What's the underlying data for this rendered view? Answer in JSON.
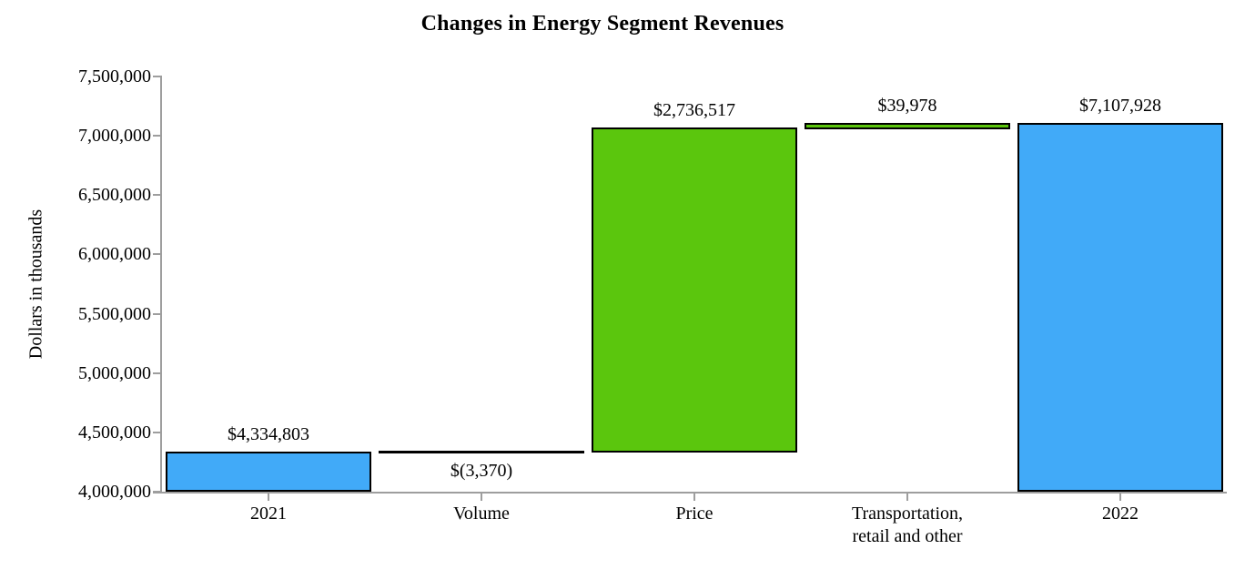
{
  "chart_data": {
    "type": "bar",
    "subtype": "waterfall",
    "title": "Changes in Energy Segment Revenues",
    "ylabel": "Dollars in thousands",
    "xlabel": "",
    "ylim": [
      4000000,
      7500000
    ],
    "ytick_step": 500000,
    "ytick_labels": [
      "4,000,000",
      "4,500,000",
      "5,000,000",
      "5,500,000",
      "6,000,000",
      "6,500,000",
      "7,000,000",
      "7,500,000"
    ],
    "grid": false,
    "legend": false,
    "categories": [
      "2021",
      "Volume",
      "Price",
      "Transportation,\nretail and other",
      "2022"
    ],
    "values": [
      4334803,
      -3370,
      2736517,
      39978,
      7107928
    ],
    "bars": [
      {
        "label": "$4,334,803",
        "value": 4334803,
        "start": 4000000,
        "end": 4334803,
        "color_role": "total",
        "label_pos": "above"
      },
      {
        "label": "$(3,370)",
        "value": -3370,
        "start": 4334803,
        "end": 4331433,
        "color_role": "delta-line",
        "label_pos": "below"
      },
      {
        "label": "$2,736,517",
        "value": 2736517,
        "start": 4331433,
        "end": 7067950,
        "color_role": "delta",
        "label_pos": "above"
      },
      {
        "label": "$39,978",
        "value": 39978,
        "start": 7067950,
        "end": 7107928,
        "color_role": "delta",
        "label_pos": "above"
      },
      {
        "label": "$7,107,928",
        "value": 7107928,
        "start": 4000000,
        "end": 7107928,
        "color_role": "total",
        "label_pos": "above"
      }
    ],
    "colors": {
      "total_bar": "#41AAF8",
      "delta_bar": "#5BC60D",
      "bar_border": "#000000",
      "axis_line": "#9E9E9E",
      "text": "#000000"
    }
  }
}
